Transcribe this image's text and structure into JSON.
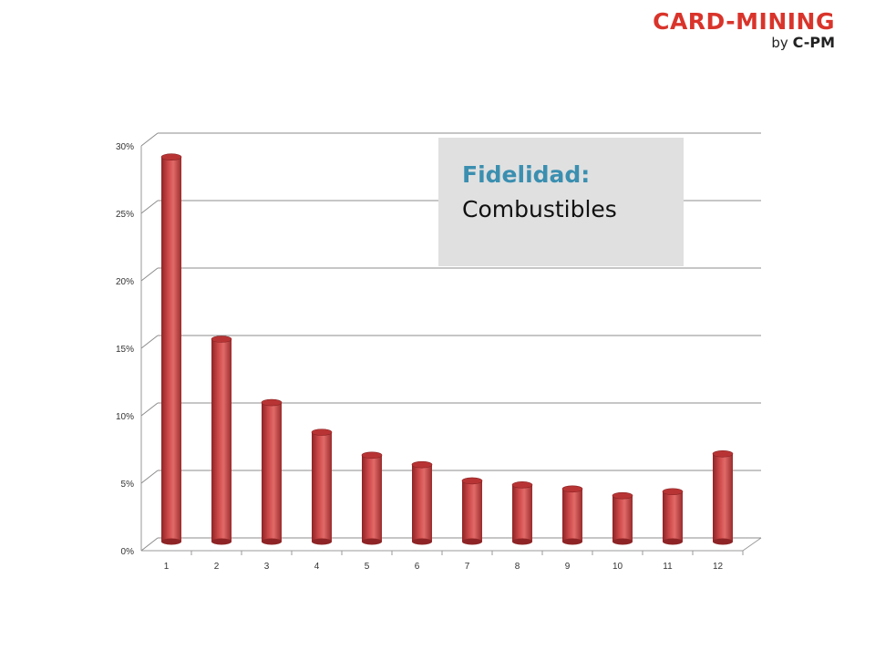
{
  "logo": {
    "brand": "CARD-MINING",
    "by_prefix": "by",
    "by_name": "C-PM",
    "color": "#d9342b"
  },
  "title_box": {
    "line1": "Fidelidad:",
    "line2": "Combustibles",
    "line1_color": "#3b8fb0"
  },
  "chart_data": {
    "type": "bar",
    "categories": [
      "1",
      "2",
      "3",
      "4",
      "5",
      "6",
      "7",
      "8",
      "9",
      "10",
      "11",
      "12"
    ],
    "values": [
      28.5,
      15.0,
      10.3,
      8.1,
      6.4,
      5.7,
      4.5,
      4.2,
      3.9,
      3.4,
      3.7,
      6.5
    ],
    "yticks": [
      "0%",
      "5%",
      "10%",
      "15%",
      "20%",
      "25%",
      "30%"
    ],
    "ylim": [
      0,
      30
    ],
    "grid": true,
    "bar_color": "#c0393b",
    "title": "",
    "xlabel": "",
    "ylabel": ""
  }
}
